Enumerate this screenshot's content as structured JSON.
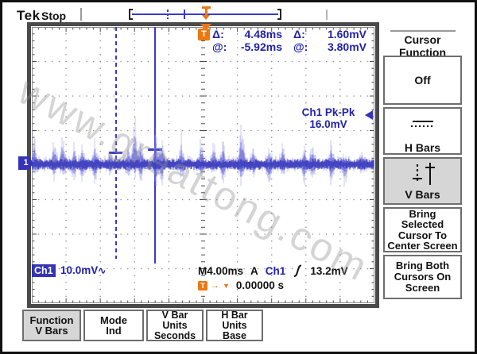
{
  "colors": {
    "blue_text": "#2222aa",
    "cursor_blue": "#3a3acc",
    "orange": "#ee7711",
    "channel_badge_bg": "#3434b8",
    "selected_bg": "#d6d6d6",
    "grid_dot": "#949494",
    "grid_tick": "#4a4a4a",
    "wave_halo": "rgba(150,150,232,0.5)",
    "wave_core": "rgba(88,88,210,0.62)",
    "wave_spine": "rgba(58,58,188,0.85)"
  },
  "top_bar": {
    "logo": "Tek",
    "status": "Stop",
    "trigger_marker": "T"
  },
  "cursor_readout": {
    "trigger_badge": "T",
    "row1": {
      "label1": "Δ:",
      "value1": "4.48ms",
      "label2": "Δ:",
      "value2": "1.60mV"
    },
    "row2": {
      "label1": "@:",
      "value1": "-5.92ms",
      "label2": "@:",
      "value2": "3.80mV"
    }
  },
  "display": {
    "channel_marker": "1",
    "measurement": "Ch1 Pk-Pk\n16.0mV",
    "channel_scale": {
      "channel": "Ch1",
      "scale": "10.0mV",
      "coupling": "∿"
    },
    "trigger_line": {
      "timebase": "M4.00ms",
      "acq": "A",
      "source": "Ch1",
      "level": "13.2mV"
    },
    "trigger_position": {
      "badge": "T",
      "arrow": "→",
      "triangle": "▼",
      "value": "0.00000 s"
    }
  },
  "watermark": "www.greattong.com",
  "side_menu": {
    "title": "Cursor\nFunction",
    "buttons": [
      {
        "label": "Off"
      },
      {
        "label": "H Bars"
      },
      {
        "label": "V Bars"
      },
      {
        "label": "Bring\nSelected\nCursor To\nCenter Screen"
      },
      {
        "label": "Bring Both\nCursors On\nScreen"
      }
    ]
  },
  "bottom_menu": {
    "buttons": [
      {
        "label": "Function\nV Bars"
      },
      {
        "label": "Mode\nInd"
      },
      {
        "label": "V Bar\nUnits\nSeconds"
      },
      {
        "label": "H Bar\nUnits\nBase"
      }
    ]
  }
}
